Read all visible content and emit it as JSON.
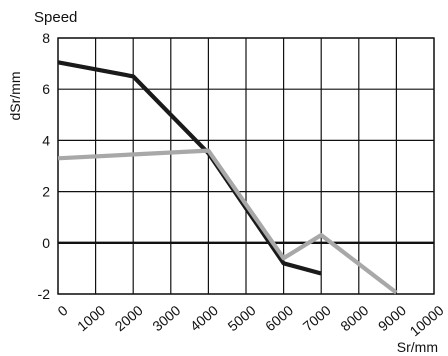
{
  "chart_data": {
    "type": "line",
    "title": "Speed",
    "xlabel": "Sr/mm",
    "ylabel": "dSr/mm",
    "xlim": [
      0,
      10000
    ],
    "ylim": [
      -2,
      8
    ],
    "x_ticks": [
      0,
      1000,
      2000,
      3000,
      4000,
      5000,
      6000,
      7000,
      8000,
      9000,
      10000
    ],
    "y_ticks": [
      -2,
      0,
      2,
      4,
      6,
      8
    ],
    "x_tick_labels": [
      "0",
      "1000",
      "2000",
      "3000",
      "4000",
      "5000",
      "6000",
      "7000",
      "8000",
      "9000",
      "10000"
    ],
    "y_tick_labels": [
      "-2",
      "0",
      "2",
      "4",
      "6",
      "8"
    ],
    "grid": true,
    "zero_line": true,
    "series": [
      {
        "color": "#1a1a1a",
        "x": [
          0,
          2000,
          4000,
          6000,
          7000
        ],
        "y": [
          7.05,
          6.5,
          3.5,
          -0.8,
          -1.2
        ]
      },
      {
        "color": "#a8a8a8",
        "x": [
          0,
          4000,
          6000,
          7000,
          9000
        ],
        "y": [
          3.3,
          3.6,
          -0.6,
          0.3,
          -1.95
        ]
      }
    ]
  }
}
